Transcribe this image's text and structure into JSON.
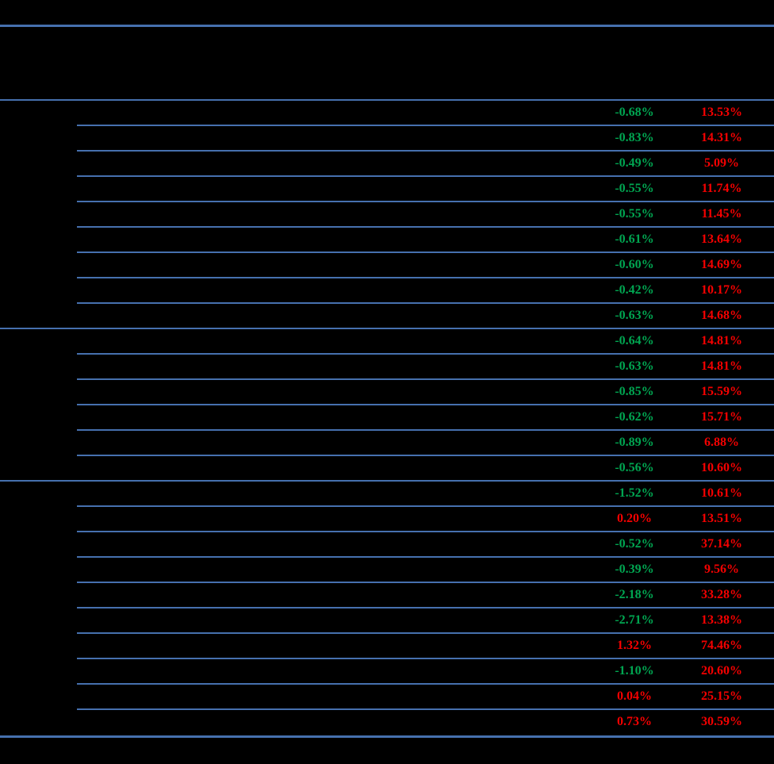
{
  "page": {
    "background": "#000000",
    "rule_color": "#4670ae"
  },
  "colors": {
    "negative": "#00a651",
    "positive": "#f40000"
  },
  "table": {
    "rows": [
      {
        "col1": "-0.68%",
        "col2": "13.53%"
      },
      {
        "col1": "-0.83%",
        "col2": "14.31%"
      },
      {
        "col1": "-0.49%",
        "col2": "5.09%"
      },
      {
        "col1": "-0.55%",
        "col2": "11.74%"
      },
      {
        "col1": "-0.55%",
        "col2": "11.45%"
      },
      {
        "col1": "-0.61%",
        "col2": "13.64%"
      },
      {
        "col1": "-0.60%",
        "col2": "14.69%"
      },
      {
        "col1": "-0.42%",
        "col2": "10.17%"
      },
      {
        "col1": "-0.63%",
        "col2": "14.68%"
      },
      {
        "col1": "-0.64%",
        "col2": "14.81%"
      },
      {
        "col1": "-0.63%",
        "col2": "14.81%"
      },
      {
        "col1": "-0.85%",
        "col2": "15.59%"
      },
      {
        "col1": "-0.62%",
        "col2": "15.71%"
      },
      {
        "col1": "-0.89%",
        "col2": "6.88%"
      },
      {
        "col1": "-0.56%",
        "col2": "10.60%"
      },
      {
        "col1": "-1.52%",
        "col2": "10.61%"
      },
      {
        "col1": "0.20%",
        "col2": "13.51%"
      },
      {
        "col1": "-0.52%",
        "col2": "37.14%"
      },
      {
        "col1": "-0.39%",
        "col2": "9.56%"
      },
      {
        "col1": "-2.18%",
        "col2": "33.28%"
      },
      {
        "col1": "-2.71%",
        "col2": "13.38%"
      },
      {
        "col1": "1.32%",
        "col2": "74.46%"
      },
      {
        "col1": "-1.10%",
        "col2": "20.60%"
      },
      {
        "col1": "0.04%",
        "col2": "25.15%"
      },
      {
        "col1": "0.73%",
        "col2": "30.59%"
      }
    ]
  }
}
